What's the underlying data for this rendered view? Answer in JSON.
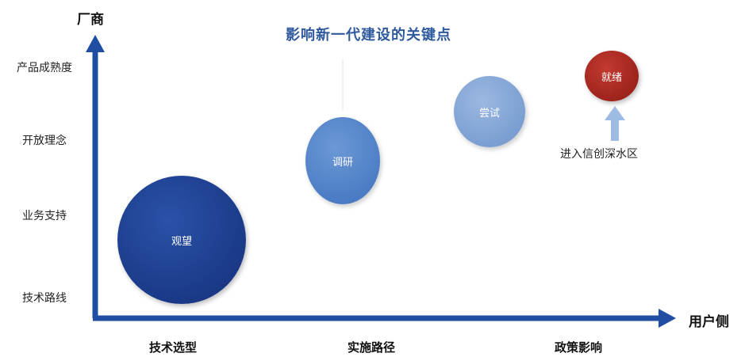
{
  "title": "影响新一代建设的关键点",
  "y_axis_label": "厂商",
  "x_axis_label": "用户侧",
  "y_ticks": [
    "产品成熟度",
    "开放理念",
    "业务支持",
    "技术路线"
  ],
  "x_ticks": [
    "技术选型",
    "实施路径",
    "政策影响"
  ],
  "stages": [
    {
      "label": "观望",
      "color": "#1c3e8f"
    },
    {
      "label": "调研",
      "color": "#4e82c9"
    },
    {
      "label": "尝试",
      "color": "#7a9fd3"
    },
    {
      "label": "就绪",
      "color": "#a5221b"
    }
  ],
  "annotation": "进入信创深水区",
  "colors": {
    "axis": "#1f4ea3",
    "title": "#2f5a9e",
    "arrow_light": "#9ebbe3"
  }
}
